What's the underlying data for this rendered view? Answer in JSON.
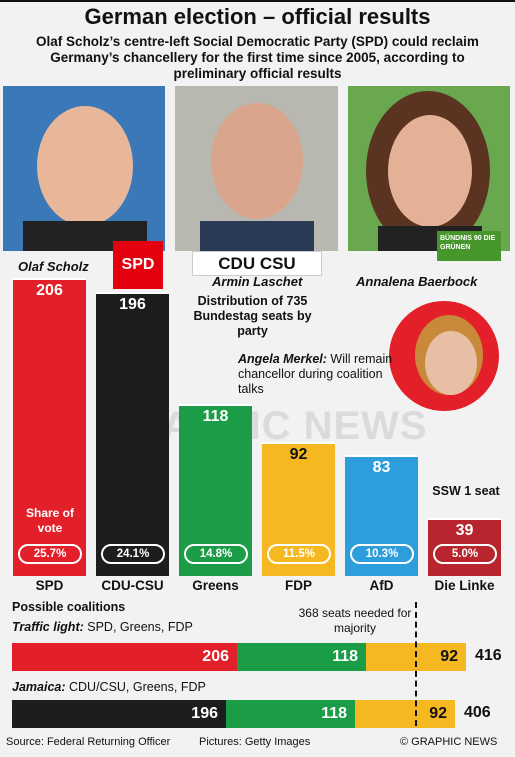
{
  "header": {
    "title": "German election – official results",
    "subtitle": "Olaf Scholz’s centre-left Social Democratic Party (SPD) could reclaim Germany’s chancellery for the first time since 2005, according to preliminary official results"
  },
  "candidates": {
    "scholz": "Olaf Scholz",
    "laschet": "Armin Laschet",
    "baerbock": "Annalena Baerbock"
  },
  "logos": {
    "spd": "SPD",
    "cdu": "CDU CSU",
    "greens": "BÜNDNIS 90 DIE GRÜNEN"
  },
  "distribution_label": "Distribution of 735 Bundestag seats by party",
  "merkel": {
    "name": "Angela Merkel:",
    "note": " Will remain chancellor during coalition talks"
  },
  "watermark": "GRAPHIC NEWS",
  "share_caption": "Share of vote",
  "ssw": "SSW 1 seat",
  "colors": {
    "SPD": "#e3202a",
    "CDU-CSU": "#1d1d1b",
    "Greens": "#1a9d46",
    "FDP": "#f6b820",
    "AfD": "#2d9ddb",
    "Die Linke": "#b8252e"
  },
  "chart_data": {
    "type": "bar",
    "categories": [
      "SPD",
      "CDU-CSU",
      "Greens",
      "FDP",
      "AfD",
      "Die Linke"
    ],
    "series": [
      {
        "name": "Seats",
        "values": [
          206,
          196,
          118,
          92,
          83,
          39
        ]
      },
      {
        "name": "Share of vote",
        "values": [
          25.7,
          24.1,
          14.8,
          11.5,
          10.3,
          5.0
        ]
      }
    ],
    "seat_labels": [
      "206",
      "196",
      "118",
      "92",
      "83",
      "39"
    ],
    "share_labels": [
      "25.7%",
      "24.1%",
      "14.8%",
      "11.5%",
      "10.3%",
      "5.0%"
    ],
    "ylim": [
      0,
      206
    ]
  },
  "coalitions": {
    "heading": "Possible coalitions",
    "majority_note": "368 seats needed for majority",
    "majority": 368,
    "items": [
      {
        "name": "Traffic light:",
        "parties": " SPD, Greens, FDP",
        "segments": [
          {
            "party": "SPD",
            "seats": 206,
            "label": "206"
          },
          {
            "party": "Greens",
            "seats": 118,
            "label": "118"
          },
          {
            "party": "FDP",
            "seats": 92,
            "label": "92"
          }
        ],
        "total": "416"
      },
      {
        "name": "Jamaica:",
        "parties": " CDU/CSU, Greens, FDP",
        "segments": [
          {
            "party": "CDU-CSU",
            "seats": 196,
            "label": "196"
          },
          {
            "party": "Greens",
            "seats": 118,
            "label": "118"
          },
          {
            "party": "FDP",
            "seats": 92,
            "label": "92"
          }
        ],
        "total": "406"
      }
    ]
  },
  "footer": {
    "source": "Source: Federal Returning Officer",
    "pictures": "Pictures: Getty Images",
    "credit": "© GRAPHIC NEWS"
  }
}
